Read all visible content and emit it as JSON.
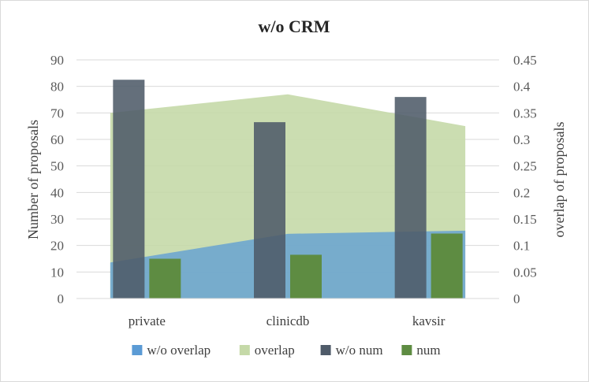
{
  "chart_data": {
    "type": "bar",
    "title": "w/o  CRM",
    "categories": [
      "private",
      "clinicdb",
      "kavsir"
    ],
    "ylabel": "Number of proposals",
    "y2label": "overlap of proposals",
    "ylim": [
      0,
      90
    ],
    "y2lim": [
      0,
      0.45
    ],
    "yticks": [
      "0",
      "10",
      "20",
      "30",
      "40",
      "50",
      "60",
      "70",
      "80",
      "90"
    ],
    "y2ticks": [
      "0",
      "0.05",
      "0.1",
      "0.15",
      "0.2",
      "0.25",
      "0.3",
      "0.35",
      "0.4",
      "0.45"
    ],
    "grid": true,
    "legend_position": "bottom",
    "series": [
      {
        "name": "w/o overlap",
        "type": "area",
        "axis": "secondary",
        "color": "#5b9bd5",
        "values": [
          0.068,
          0.122,
          0.128
        ]
      },
      {
        "name": "overlap",
        "type": "area",
        "axis": "secondary",
        "color": "#c5d9a8",
        "values": [
          0.35,
          0.385,
          0.325
        ]
      },
      {
        "name": "w/o num",
        "type": "bar",
        "axis": "primary",
        "color": "#4f5b69",
        "values": [
          82.5,
          66.5,
          76
        ]
      },
      {
        "name": "num",
        "type": "bar",
        "axis": "primary",
        "color": "#5e8c42",
        "values": [
          15,
          16.5,
          24.5
        ]
      }
    ]
  }
}
